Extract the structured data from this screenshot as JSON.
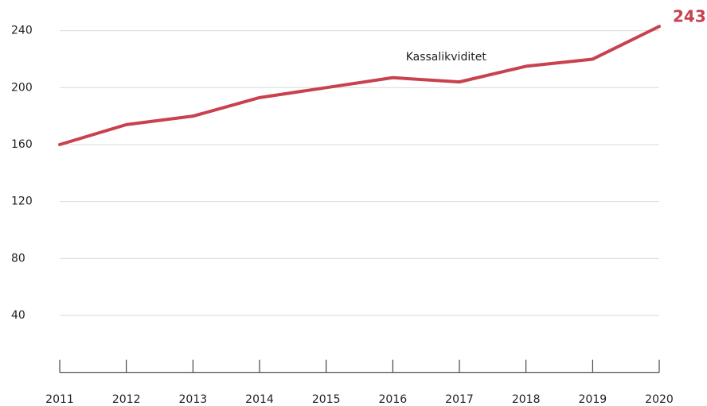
{
  "chart_data": {
    "type": "line",
    "categories": [
      "2011",
      "2012",
      "2013",
      "2014",
      "2015",
      "2016",
      "2017",
      "2018",
      "2019",
      "2020"
    ],
    "series": [
      {
        "name": "Kassalikviditet",
        "color": "#c8414f",
        "values": [
          160,
          174,
          180,
          193,
          200,
          207,
          204,
          215,
          220,
          243
        ]
      }
    ],
    "ylim": [
      0,
      250
    ],
    "yticks": [
      40,
      80,
      120,
      160,
      200,
      240
    ],
    "grid": true
  }
}
